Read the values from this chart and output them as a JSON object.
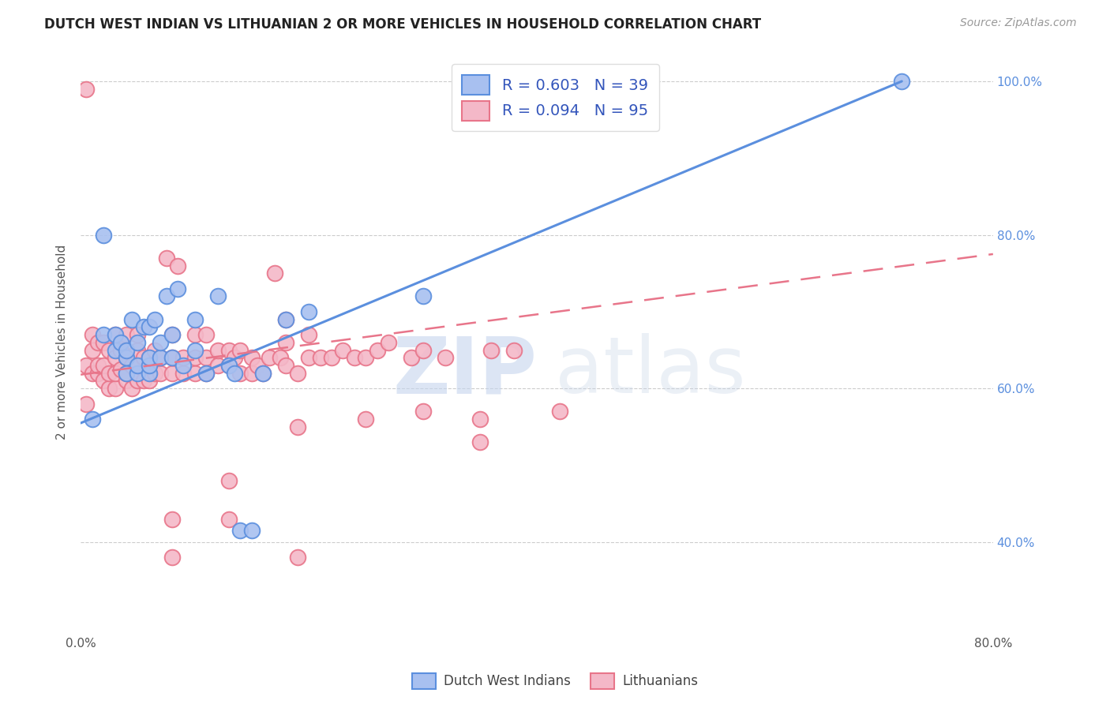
{
  "title": "DUTCH WEST INDIAN VS LITHUANIAN 2 OR MORE VEHICLES IN HOUSEHOLD CORRELATION CHART",
  "source": "Source: ZipAtlas.com",
  "ylabel": "2 or more Vehicles in Household",
  "xlim": [
    0.0,
    0.8
  ],
  "ylim": [
    0.28,
    1.04
  ],
  "y_tick_positions": [
    0.4,
    0.6,
    0.8,
    1.0
  ],
  "y_tick_labels": [
    "40.0%",
    "60.0%",
    "80.0%",
    "100.0%"
  ],
  "x_tick_positions": [
    0.0,
    0.1,
    0.2,
    0.3,
    0.4,
    0.5,
    0.6,
    0.7,
    0.8
  ],
  "x_tick_labels": [
    "0.0%",
    "",
    "",
    "",
    "",
    "",
    "",
    "",
    "80.0%"
  ],
  "legend_entries": [
    {
      "label": "R = 0.603   N = 39"
    },
    {
      "label": "R = 0.094   N = 95"
    }
  ],
  "blue_color": "#5b8fde",
  "pink_color": "#e8758a",
  "blue_fill": "#a8c0f0",
  "pink_fill": "#f4b8c8",
  "blue_line_x": [
    0.0,
    0.72
  ],
  "blue_line_y": [
    0.555,
    1.0
  ],
  "pink_line_x": [
    0.0,
    0.8
  ],
  "pink_line_y": [
    0.618,
    0.775
  ],
  "blue_scatter_x": [
    0.01,
    0.02,
    0.02,
    0.03,
    0.03,
    0.035,
    0.04,
    0.04,
    0.04,
    0.045,
    0.05,
    0.05,
    0.05,
    0.055,
    0.06,
    0.06,
    0.06,
    0.06,
    0.065,
    0.07,
    0.07,
    0.075,
    0.08,
    0.08,
    0.085,
    0.09,
    0.1,
    0.1,
    0.11,
    0.12,
    0.13,
    0.135,
    0.14,
    0.15,
    0.16,
    0.18,
    0.2,
    0.3,
    0.72
  ],
  "blue_scatter_y": [
    0.56,
    0.8,
    0.67,
    0.67,
    0.65,
    0.66,
    0.62,
    0.64,
    0.65,
    0.69,
    0.62,
    0.63,
    0.66,
    0.68,
    0.62,
    0.63,
    0.64,
    0.68,
    0.69,
    0.64,
    0.66,
    0.72,
    0.64,
    0.67,
    0.73,
    0.63,
    0.65,
    0.69,
    0.62,
    0.72,
    0.63,
    0.62,
    0.415,
    0.415,
    0.62,
    0.69,
    0.7,
    0.72,
    1.0
  ],
  "pink_scatter_x": [
    0.005,
    0.005,
    0.01,
    0.01,
    0.01,
    0.015,
    0.015,
    0.015,
    0.02,
    0.02,
    0.02,
    0.025,
    0.025,
    0.025,
    0.03,
    0.03,
    0.03,
    0.03,
    0.035,
    0.035,
    0.04,
    0.04,
    0.04,
    0.04,
    0.045,
    0.045,
    0.05,
    0.05,
    0.05,
    0.05,
    0.055,
    0.055,
    0.06,
    0.06,
    0.065,
    0.065,
    0.07,
    0.07,
    0.075,
    0.08,
    0.08,
    0.08,
    0.085,
    0.09,
    0.09,
    0.1,
    0.1,
    0.1,
    0.11,
    0.11,
    0.11,
    0.12,
    0.12,
    0.13,
    0.13,
    0.135,
    0.14,
    0.14,
    0.15,
    0.15,
    0.155,
    0.16,
    0.165,
    0.17,
    0.175,
    0.18,
    0.18,
    0.18,
    0.19,
    0.2,
    0.2,
    0.21,
    0.22,
    0.23,
    0.24,
    0.25,
    0.26,
    0.27,
    0.29,
    0.3,
    0.32,
    0.36,
    0.38,
    0.42,
    0.005,
    0.13,
    0.19,
    0.25,
    0.3,
    0.35,
    0.08,
    0.08,
    0.13,
    0.19,
    0.35
  ],
  "pink_scatter_y": [
    0.99,
    0.63,
    0.62,
    0.65,
    0.67,
    0.62,
    0.63,
    0.66,
    0.61,
    0.63,
    0.66,
    0.6,
    0.62,
    0.65,
    0.6,
    0.62,
    0.64,
    0.67,
    0.625,
    0.65,
    0.61,
    0.62,
    0.64,
    0.67,
    0.6,
    0.63,
    0.61,
    0.63,
    0.65,
    0.67,
    0.61,
    0.64,
    0.61,
    0.64,
    0.62,
    0.65,
    0.62,
    0.64,
    0.77,
    0.62,
    0.64,
    0.67,
    0.76,
    0.62,
    0.64,
    0.62,
    0.64,
    0.67,
    0.62,
    0.64,
    0.67,
    0.63,
    0.65,
    0.63,
    0.65,
    0.64,
    0.62,
    0.65,
    0.62,
    0.64,
    0.63,
    0.62,
    0.64,
    0.75,
    0.64,
    0.63,
    0.66,
    0.69,
    0.62,
    0.64,
    0.67,
    0.64,
    0.64,
    0.65,
    0.64,
    0.64,
    0.65,
    0.66,
    0.64,
    0.65,
    0.64,
    0.65,
    0.65,
    0.57,
    0.58,
    0.48,
    0.55,
    0.56,
    0.57,
    0.56,
    0.43,
    0.38,
    0.43,
    0.38,
    0.53
  ]
}
